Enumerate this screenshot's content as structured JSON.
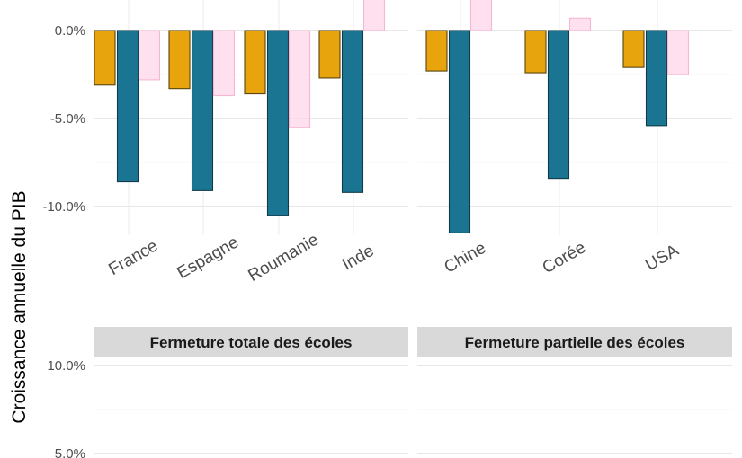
{
  "chart_data": {
    "type": "bar",
    "ylabel": "Croissance annuelle du PIB",
    "colors": [
      "#E69F00",
      "#0E6E8C",
      "#FFD6E8"
    ],
    "series_names": [
      "",
      "",
      ""
    ],
    "upper_panels": [
      {
        "categories": [
          "France",
          "Espagne",
          "Roumanie",
          "Inde"
        ],
        "values": [
          [
            -3.1,
            -8.6,
            -2.8
          ],
          [
            -3.3,
            -9.1,
            -3.7
          ],
          [
            -3.6,
            -10.5,
            -5.5
          ],
          [
            -2.7,
            -9.2,
            1.8
          ]
        ]
      },
      {
        "categories": [
          "Chine",
          "Corée",
          "USA"
        ],
        "values": [
          [
            -2.3,
            -11.5,
            1.8
          ],
          [
            -2.4,
            -8.4,
            0.7
          ],
          [
            -2.1,
            -5.4,
            -2.5
          ]
        ]
      }
    ],
    "upper_yticks": [
      {
        "value": 0,
        "label": "0.0%"
      },
      {
        "value": -5,
        "label": "-5.0%"
      },
      {
        "value": -10,
        "label": "-10.0%"
      }
    ],
    "strips": [
      "Fermeture totale des écoles",
      "Fermeture partielle des écoles"
    ],
    "lower_yticks": [
      {
        "value": 10,
        "label": "10.0%"
      },
      {
        "value": 5,
        "label": "5.0%"
      }
    ]
  }
}
